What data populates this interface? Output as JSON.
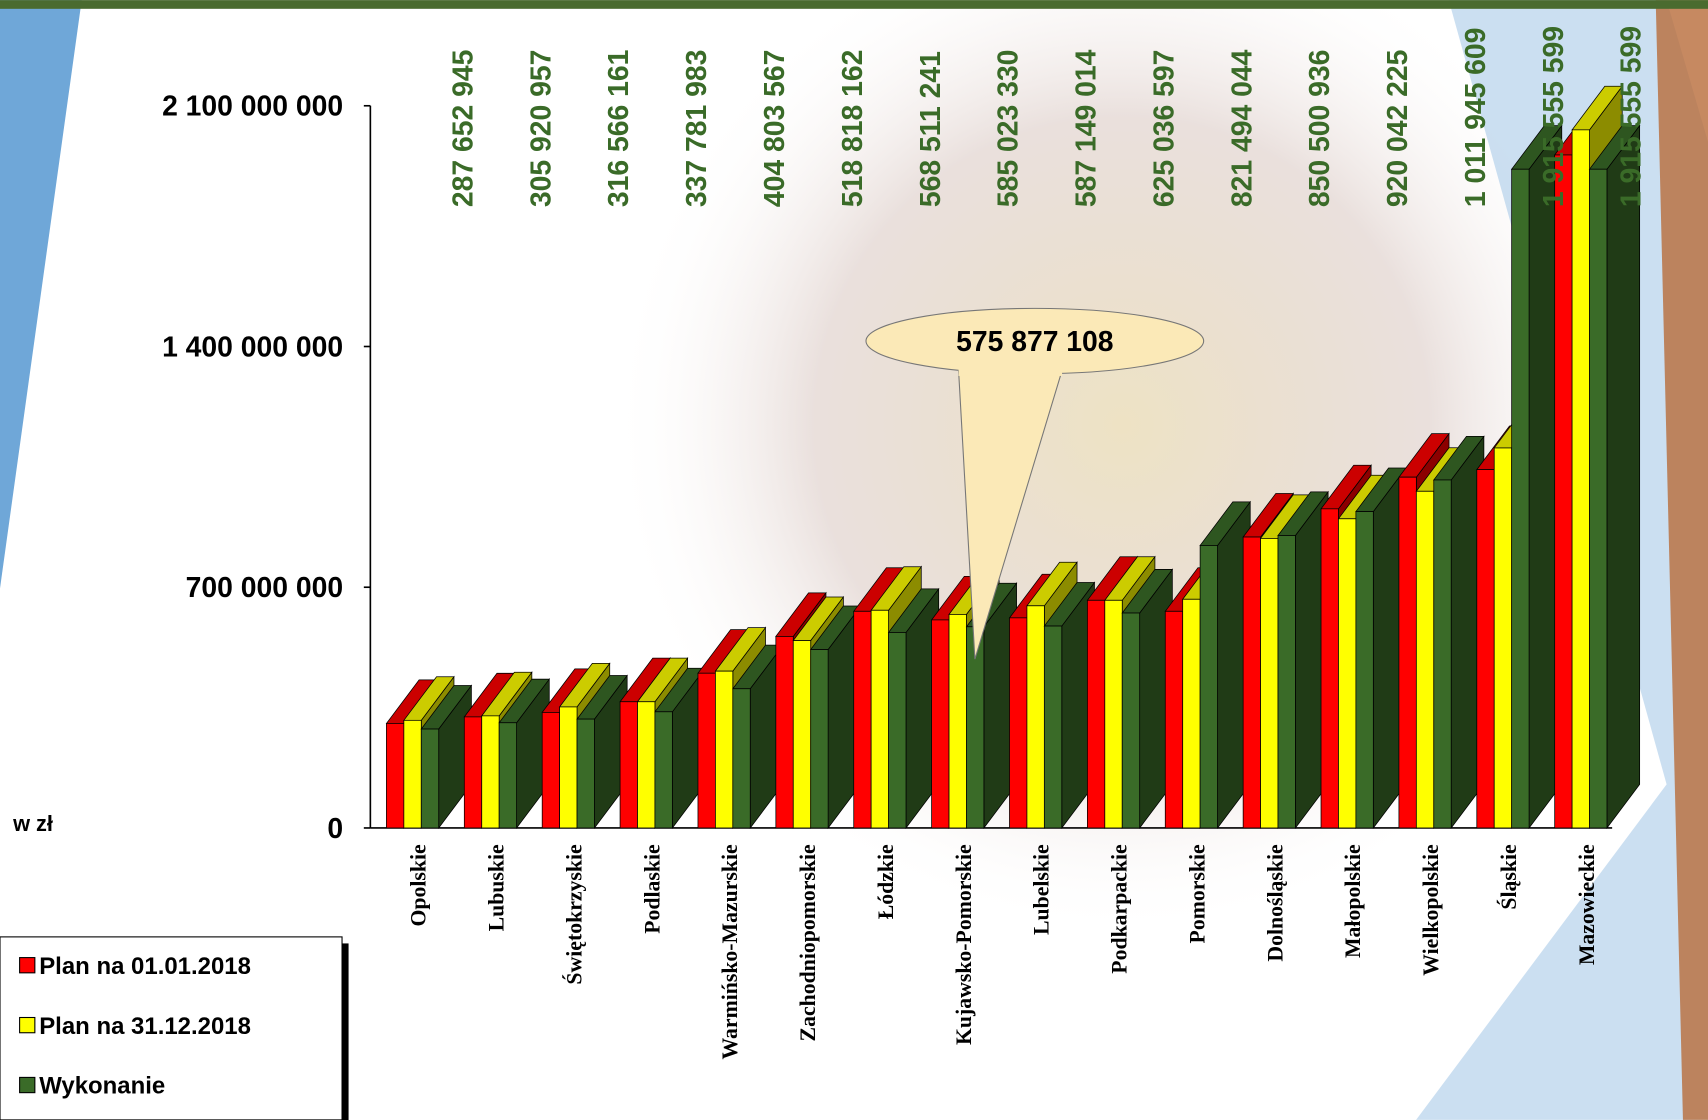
{
  "chart_data": {
    "type": "bar3d",
    "y_label": "w zł",
    "annotation": "575 877 108",
    "categories": [
      "Opolskie",
      "Lubuskie",
      "Świętokrzyskie",
      "Podlaskie",
      "Warmińsko-Mazurskie",
      "Zachodniopomorskie",
      "Łódzkie",
      "Kujawsko-Pomorskie",
      "Lubelskie",
      "Podkarpackie",
      "Pomorskie",
      "Dolnośląskie",
      "Małopolskie",
      "Wielkopolskie",
      "Śląskie",
      "Mazowieckie"
    ],
    "series": [
      {
        "name": "Plan na  01.01.2018",
        "color": "#ff0000",
        "values": [
          304000000,
          323000000,
          336000000,
          367000000,
          450000000,
          557000000,
          630000000,
          605000000,
          611000000,
          662000000,
          630000000,
          846000000,
          928000000,
          1020000000,
          1042000000,
          1957000000
        ]
      },
      {
        "name": "Plan na 31.12.2018",
        "color": "#ffff00",
        "values": [
          313000000,
          326000000,
          352000000,
          367000000,
          456000000,
          545000000,
          633000000,
          621000000,
          646000000,
          662000000,
          665000000,
          842000000,
          899000000,
          979000000,
          1105000000,
          2030000000
        ]
      },
      {
        "name": "Wykonanie",
        "color": "#3a6b28",
        "values": [
          287652945,
          305920957,
          316566161,
          337781983,
          404803567,
          518818162,
          568511241,
          585023330,
          587149014,
          625036597,
          821494044,
          850500936,
          920042225,
          1011945609,
          1915555599,
          1915555599
        ],
        "value_labels": [
          "287 652 945",
          "305 920 957",
          "316 566 161",
          "337 781 983",
          "404 803 567",
          "518 818 162",
          "568 511 241",
          "585 023 330",
          "587 149 014",
          "625 036 597",
          "821 494 044",
          "850 500 936",
          "920 042 225",
          "1 011 945 609",
          "1 915 555 599",
          "1 915 555 599"
        ]
      }
    ],
    "ylim": [
      0,
      2100000000
    ],
    "yticks": [
      {
        "value": 0,
        "label": "0"
      },
      {
        "value": 700000000,
        "label": "700 000 000"
      },
      {
        "value": 1400000000,
        "label": "1 400 000 000"
      },
      {
        "value": 2100000000,
        "label": "2 100 000 000"
      }
    ]
  }
}
